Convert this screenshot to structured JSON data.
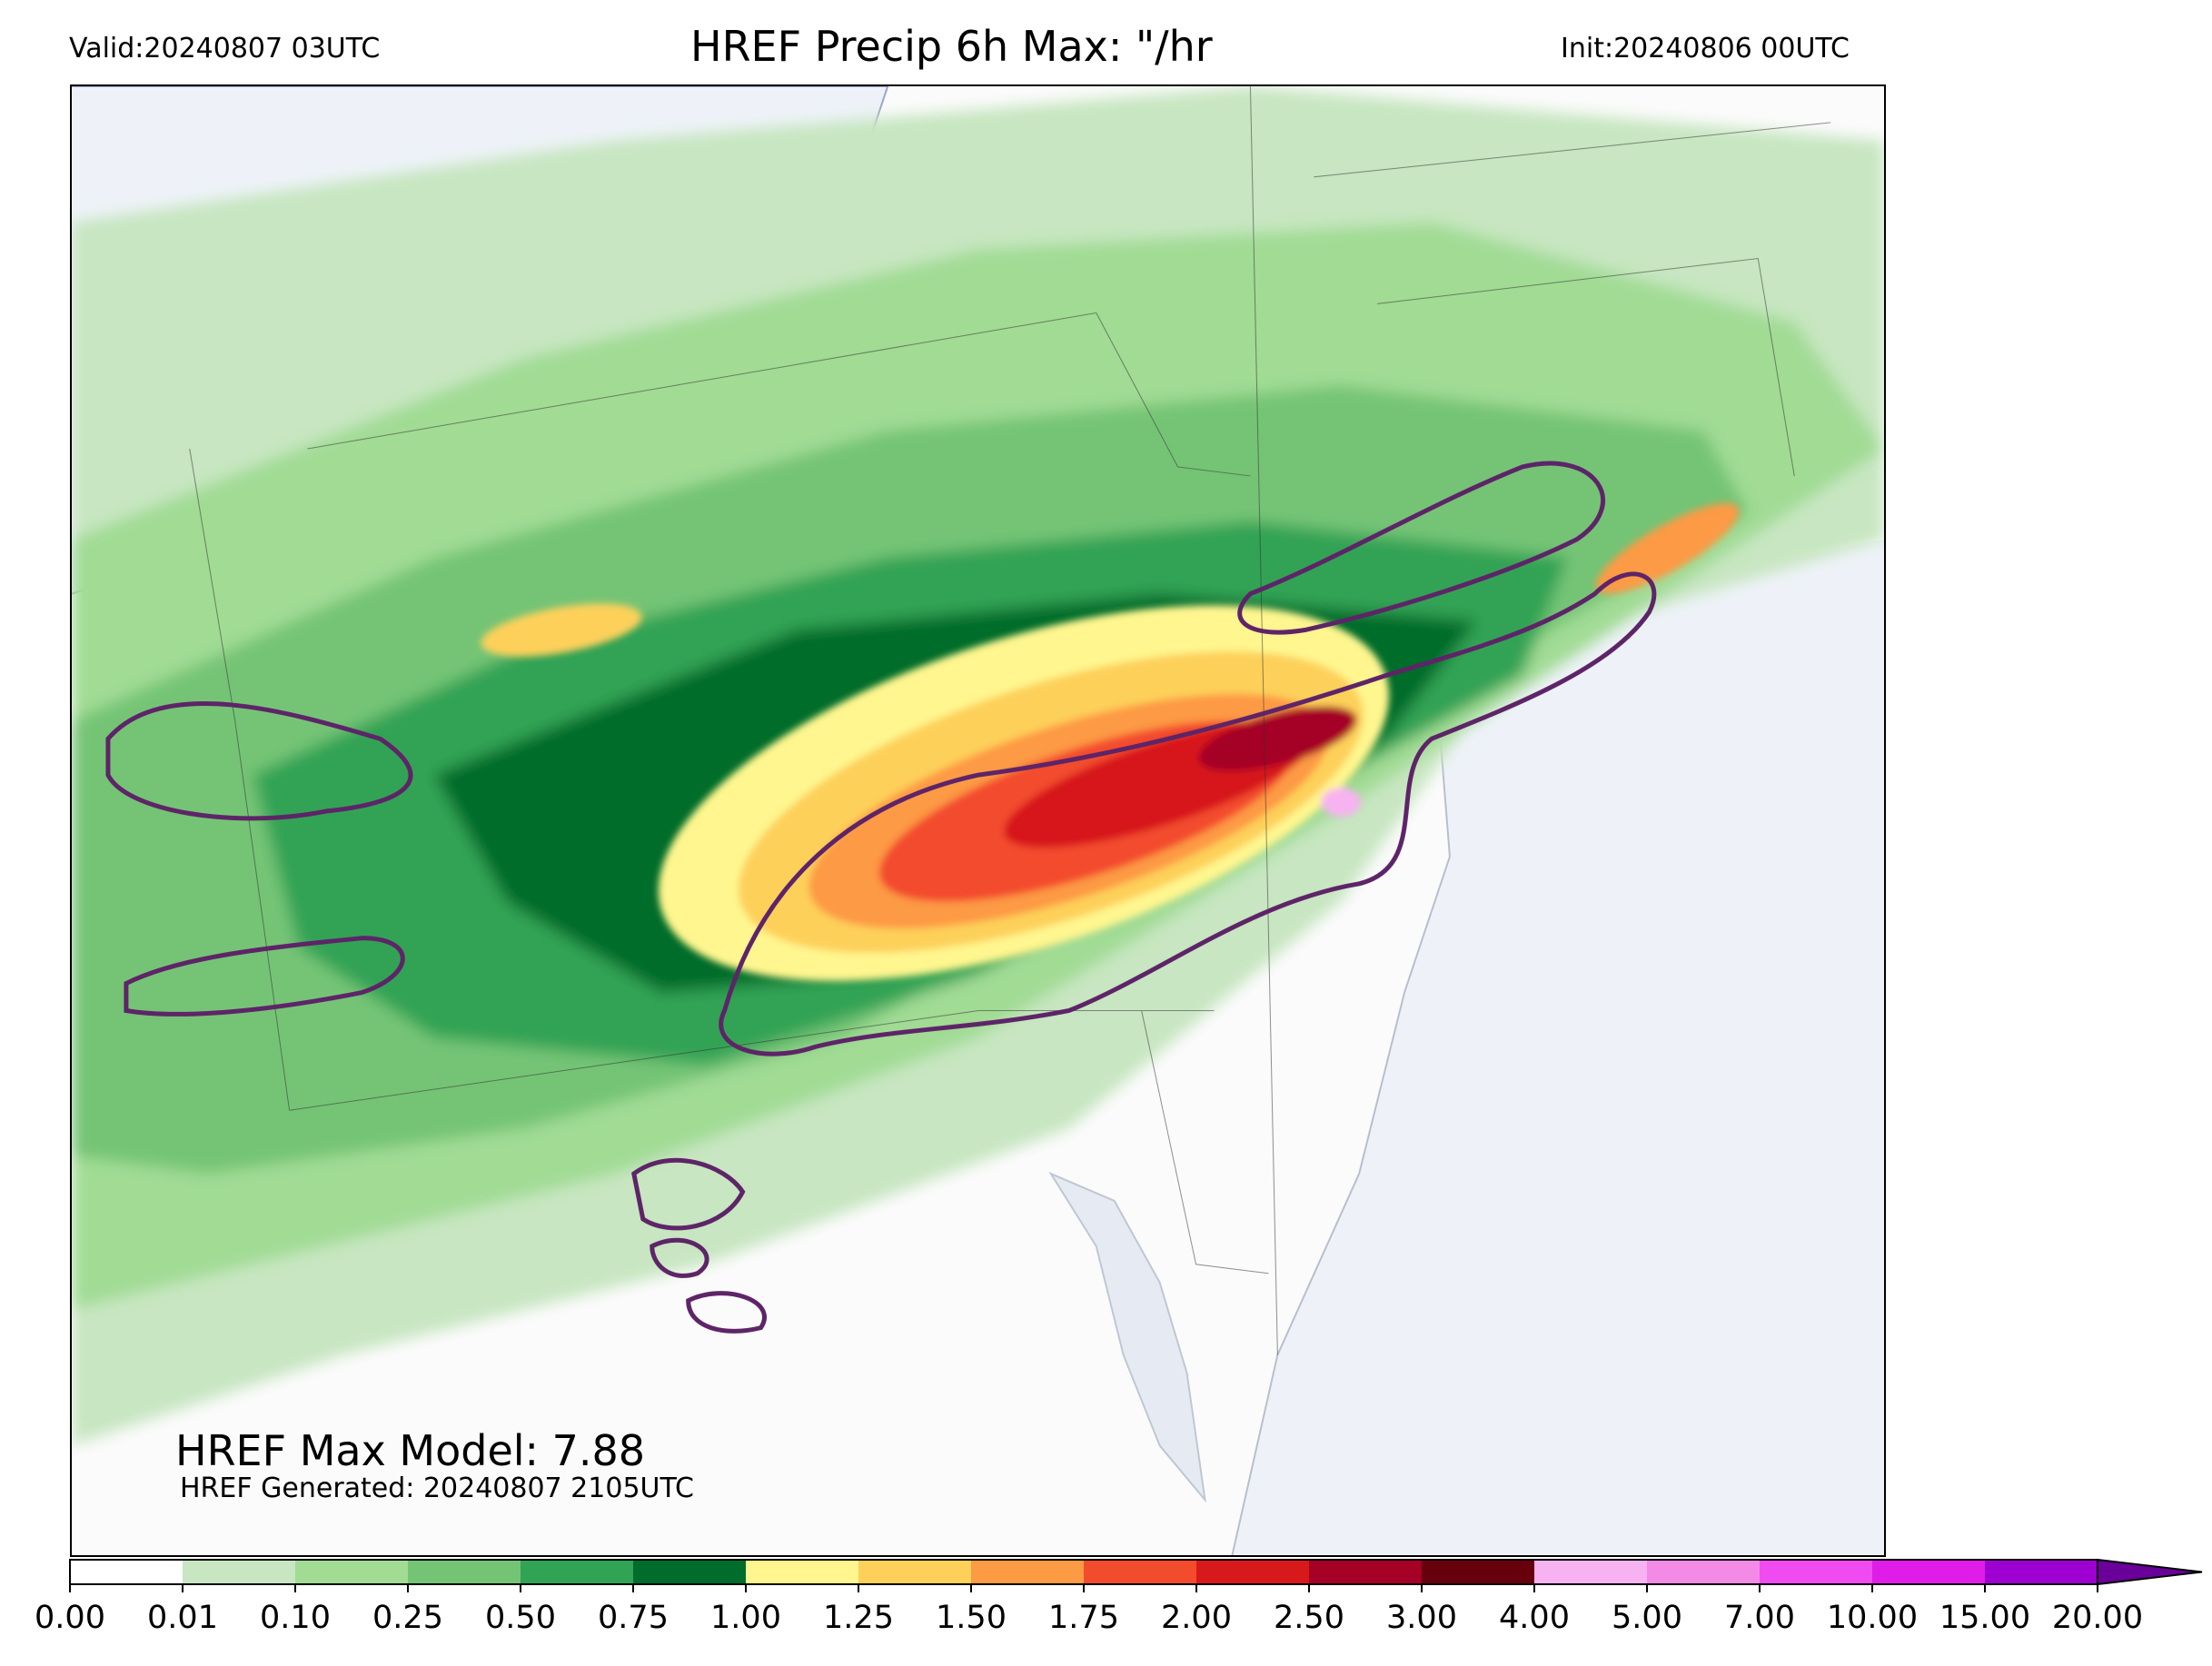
{
  "header": {
    "valid": "Valid:20240807 03UTC",
    "title": "HREF Precip 6h Max: \"/hr",
    "init": "Init:20240806 00UTC"
  },
  "annotations": {
    "max_model": "HREF Max Model: 7.88",
    "generated": "HREF Generated: 20240807 2105UTC"
  },
  "colorbar": {
    "ticks": [
      "0.00",
      "0.01",
      "0.10",
      "0.25",
      "0.50",
      "0.75",
      "1.00",
      "1.25",
      "1.50",
      "1.75",
      "2.00",
      "2.50",
      "3.00",
      "4.00",
      "5.00",
      "7.00",
      "10.00",
      "15.00",
      "20.00"
    ],
    "colors": [
      "#ffffff",
      "#c7e6c1",
      "#a1db94",
      "#74c476",
      "#31a354",
      "#006d2c",
      "#fff68f",
      "#fdd05a",
      "#fd9a44",
      "#f34c2d",
      "#d7191c",
      "#a50026",
      "#67000d",
      "#f7b2f1",
      "#f28ae6",
      "#f04bf0",
      "#e01de8",
      "#9d00d0"
    ],
    "extend_color": "#6a0099"
  },
  "map": {
    "land_color": "#fbfbfb",
    "water_color": "#eef2f8",
    "contour_color": "#5e2468"
  }
}
